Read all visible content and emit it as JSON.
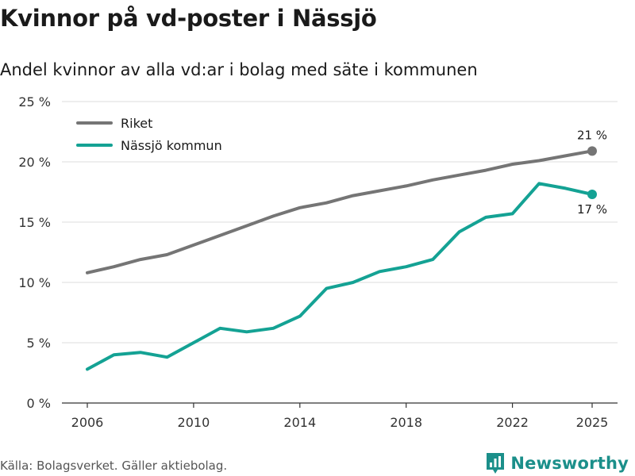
{
  "page": {
    "title": "Kvinnor på vd-poster i Nässjö",
    "subtitle": "Andel kvinnor av alla vd:ar i bolag med säte i kommunen",
    "source": "Källa: Bolagsverket. Gäller aktiebolag.",
    "brand": "Newsworthy"
  },
  "colors": {
    "riket": "#757575",
    "kommun": "#14a294",
    "grid": "#dcdcdc",
    "axis": "#333333",
    "brand": "#1b8f8a"
  },
  "chart_data": {
    "type": "line",
    "title": "Kvinnor på vd-poster i Nässjö",
    "subtitle": "Andel kvinnor av alla vd:ar i bolag med säte i kommunen",
    "xlabel": "",
    "ylabel": "",
    "x": [
      2006,
      2007,
      2008,
      2009,
      2010,
      2011,
      2012,
      2013,
      2014,
      2015,
      2016,
      2017,
      2018,
      2019,
      2020,
      2021,
      2022,
      2023,
      2024,
      2025
    ],
    "xlim": [
      2006,
      2025
    ],
    "ylim": [
      0,
      25
    ],
    "x_ticks": [
      2006,
      2010,
      2014,
      2018,
      2022,
      2025
    ],
    "x_tick_labels": [
      "2006",
      "2010",
      "2014",
      "2018",
      "2022",
      "2025"
    ],
    "y_ticks": [
      0,
      5,
      10,
      15,
      20,
      25
    ],
    "y_tick_labels": [
      "0 %",
      "5 %",
      "10 %",
      "15 %",
      "20 %",
      "25 %"
    ],
    "grid": true,
    "legend_position": "top-left",
    "series": [
      {
        "key": "riket",
        "name": "Riket",
        "values": [
          10.8,
          11.3,
          11.9,
          12.3,
          13.1,
          13.9,
          14.7,
          15.5,
          16.2,
          16.6,
          17.2,
          17.6,
          18.0,
          18.5,
          18.9,
          19.3,
          19.8,
          20.1,
          20.5,
          20.9
        ],
        "end_label": "21 %"
      },
      {
        "key": "kommun",
        "name": "Nässjö kommun",
        "values": [
          2.8,
          4.0,
          4.2,
          3.8,
          5.0,
          6.2,
          5.9,
          6.2,
          7.2,
          9.5,
          10.0,
          10.9,
          11.3,
          11.9,
          14.2,
          15.4,
          15.7,
          18.2,
          17.8,
          17.3
        ],
        "end_label": "17 %"
      }
    ]
  }
}
